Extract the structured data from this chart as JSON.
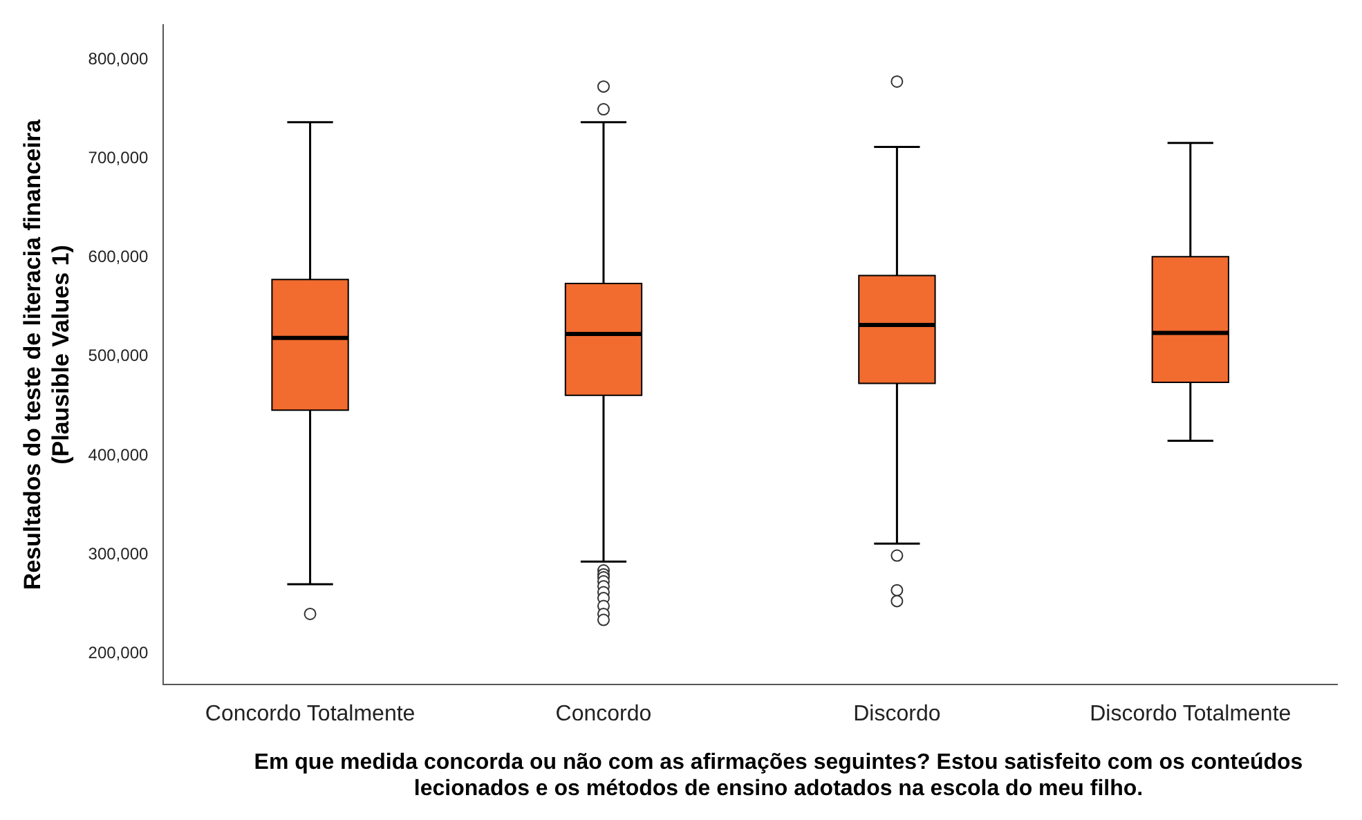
{
  "chart_data": {
    "type": "box",
    "xlabel": "Em que medida concorda ou não com as afirmações seguintes? Estou satisfeito com os conteúdos lecionados e os métodos de ensino adotados na escola do meu filho.",
    "ylabel": "Resultados do teste de literacia financeira\n(Plausible Values 1)",
    "categories": [
      "Concordo Totalmente",
      "Concordo",
      "Discordo",
      "Discordo Totalmente"
    ],
    "color": "#f26b2f",
    "boxes": [
      {
        "low": 270000,
        "q1": 446000,
        "median": 519000,
        "q3": 578000,
        "high": 737000,
        "outliers": [
          240000
        ]
      },
      {
        "low": 293000,
        "q1": 461000,
        "median": 523000,
        "q3": 574000,
        "high": 737000,
        "outliers": [
          773000,
          750000,
          284000,
          280000,
          277000,
          273000,
          268000,
          262000,
          256000,
          248000,
          240000,
          234000
        ]
      },
      {
        "low": 311000,
        "q1": 473000,
        "median": 532000,
        "q3": 582000,
        "high": 712000,
        "outliers": [
          778000,
          299000,
          264000,
          253000
        ]
      },
      {
        "low": 415000,
        "q1": 474000,
        "median": 524000,
        "q3": 601000,
        "high": 716000
      }
    ],
    "ylim": [
      169000,
      835000
    ],
    "yticks": [
      {
        "value": 200000,
        "label": "200,000"
      },
      {
        "value": 300000,
        "label": "300,000"
      },
      {
        "value": 400000,
        "label": "400,000"
      },
      {
        "value": 500000,
        "label": "500,000"
      },
      {
        "value": 600000,
        "label": "600,000"
      },
      {
        "value": 700000,
        "label": "700,000"
      },
      {
        "value": 800000,
        "label": "800,000"
      }
    ]
  }
}
